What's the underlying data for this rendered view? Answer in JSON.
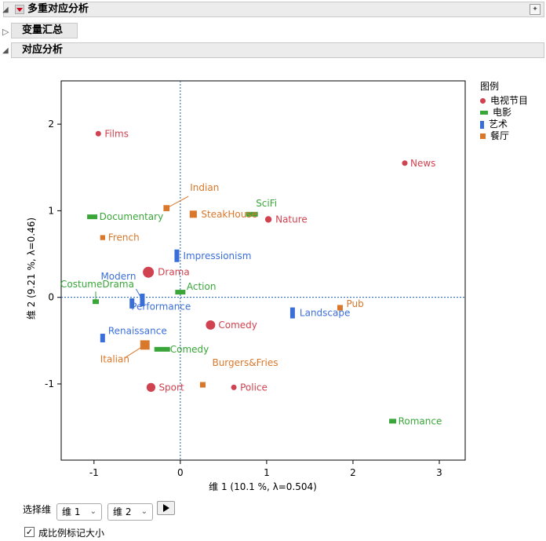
{
  "panel": {
    "title": "多重对应分析"
  },
  "sections": {
    "summary": "变量汇总",
    "ca": "对应分析"
  },
  "legend": {
    "title": "图例",
    "items": [
      {
        "label": "电视节目",
        "color": "#d0424f",
        "shape": "circle"
      },
      {
        "label": "电影",
        "color": "#3aa63a",
        "shape": "bar"
      },
      {
        "label": "艺术",
        "color": "#3b6fd8",
        "shape": "vbar"
      },
      {
        "label": "餐厅",
        "color": "#d9772a",
        "shape": "square"
      }
    ]
  },
  "controls": {
    "select_dim_label": "选择维",
    "dim_x": "维 1",
    "dim_y": "维 2",
    "scale_marker_label": "成比例标记大小",
    "scale_marker_checked": true
  },
  "chart_data": {
    "type": "scatter",
    "xlabel": "维 1  (10.1 %, λ=0.504)",
    "ylabel": "维 2  (9.21 %, λ=0.46)",
    "xlim": [
      -1.38,
      3.3
    ],
    "ylim": [
      -1.88,
      2.5
    ],
    "xticks": [
      -1,
      0,
      1,
      2,
      3
    ],
    "yticks": [
      -1,
      0,
      1,
      2
    ],
    "reference_lines": {
      "x": 0,
      "y": 0
    },
    "series": [
      {
        "name": "电视节目",
        "color": "#d0424f",
        "shape": "circle",
        "points": [
          {
            "label": "Films",
            "x": -0.95,
            "y": 1.89,
            "size": 1
          },
          {
            "label": "News",
            "x": 2.6,
            "y": 1.55,
            "size": 1
          },
          {
            "label": "Nature",
            "x": 1.02,
            "y": 0.9,
            "size": 1.2
          },
          {
            "label": "Drama",
            "x": -0.37,
            "y": 0.29,
            "size": 2
          },
          {
            "label": "Comedy",
            "x": 0.35,
            "y": -0.32,
            "size": 1.7
          },
          {
            "label": "Sport",
            "x": -0.34,
            "y": -1.04,
            "size": 1.6
          },
          {
            "label": "Police",
            "x": 0.62,
            "y": -1.04,
            "size": 1
          }
        ]
      },
      {
        "name": "电影",
        "color": "#3aa63a",
        "shape": "bar",
        "points": [
          {
            "label": "Documentary",
            "x": -1.02,
            "y": 0.93,
            "size": 1.3
          },
          {
            "label": "SciFi",
            "x": 0.83,
            "y": 0.96,
            "size": 1.5
          },
          {
            "label": "CostumeDrama",
            "x": -0.98,
            "y": -0.05,
            "size": 0.8
          },
          {
            "label": "Action",
            "x": 0.0,
            "y": 0.06,
            "size": 1.3
          },
          {
            "label": "Comedy",
            "x": -0.21,
            "y": -0.6,
            "size": 2
          },
          {
            "label": "Romance",
            "x": 2.46,
            "y": -1.43,
            "size": 0.9
          }
        ]
      },
      {
        "name": "艺术",
        "color": "#3b6fd8",
        "shape": "vbar",
        "points": [
          {
            "label": "Impressionism",
            "x": -0.04,
            "y": 0.48,
            "size": 1.6
          },
          {
            "label": "Modern",
            "x": -0.44,
            "y": -0.03,
            "size": 1.6
          },
          {
            "label": "Performance",
            "x": -0.56,
            "y": -0.07,
            "size": 1.3
          },
          {
            "label": "Landscape",
            "x": 1.3,
            "y": -0.18,
            "size": 1.4
          },
          {
            "label": "Renaissance",
            "x": -0.9,
            "y": -0.47,
            "size": 1.1
          }
        ]
      },
      {
        "name": "餐厅",
        "color": "#d9772a",
        "shape": "square",
        "points": [
          {
            "label": "Indian",
            "x": -0.16,
            "y": 1.03,
            "size": 1.1
          },
          {
            "label": "SteakHouse",
            "x": 0.15,
            "y": 0.96,
            "size": 1.3
          },
          {
            "label": "French",
            "x": -0.9,
            "y": 0.69,
            "size": 0.9
          },
          {
            "label": "Pub",
            "x": 1.85,
            "y": -0.12,
            "size": 1
          },
          {
            "label": "Italian",
            "x": -0.41,
            "y": -0.55,
            "size": 1.7
          },
          {
            "label": "Burgers&Fries",
            "x": 0.26,
            "y": -1.01,
            "size": 1
          }
        ]
      }
    ]
  }
}
